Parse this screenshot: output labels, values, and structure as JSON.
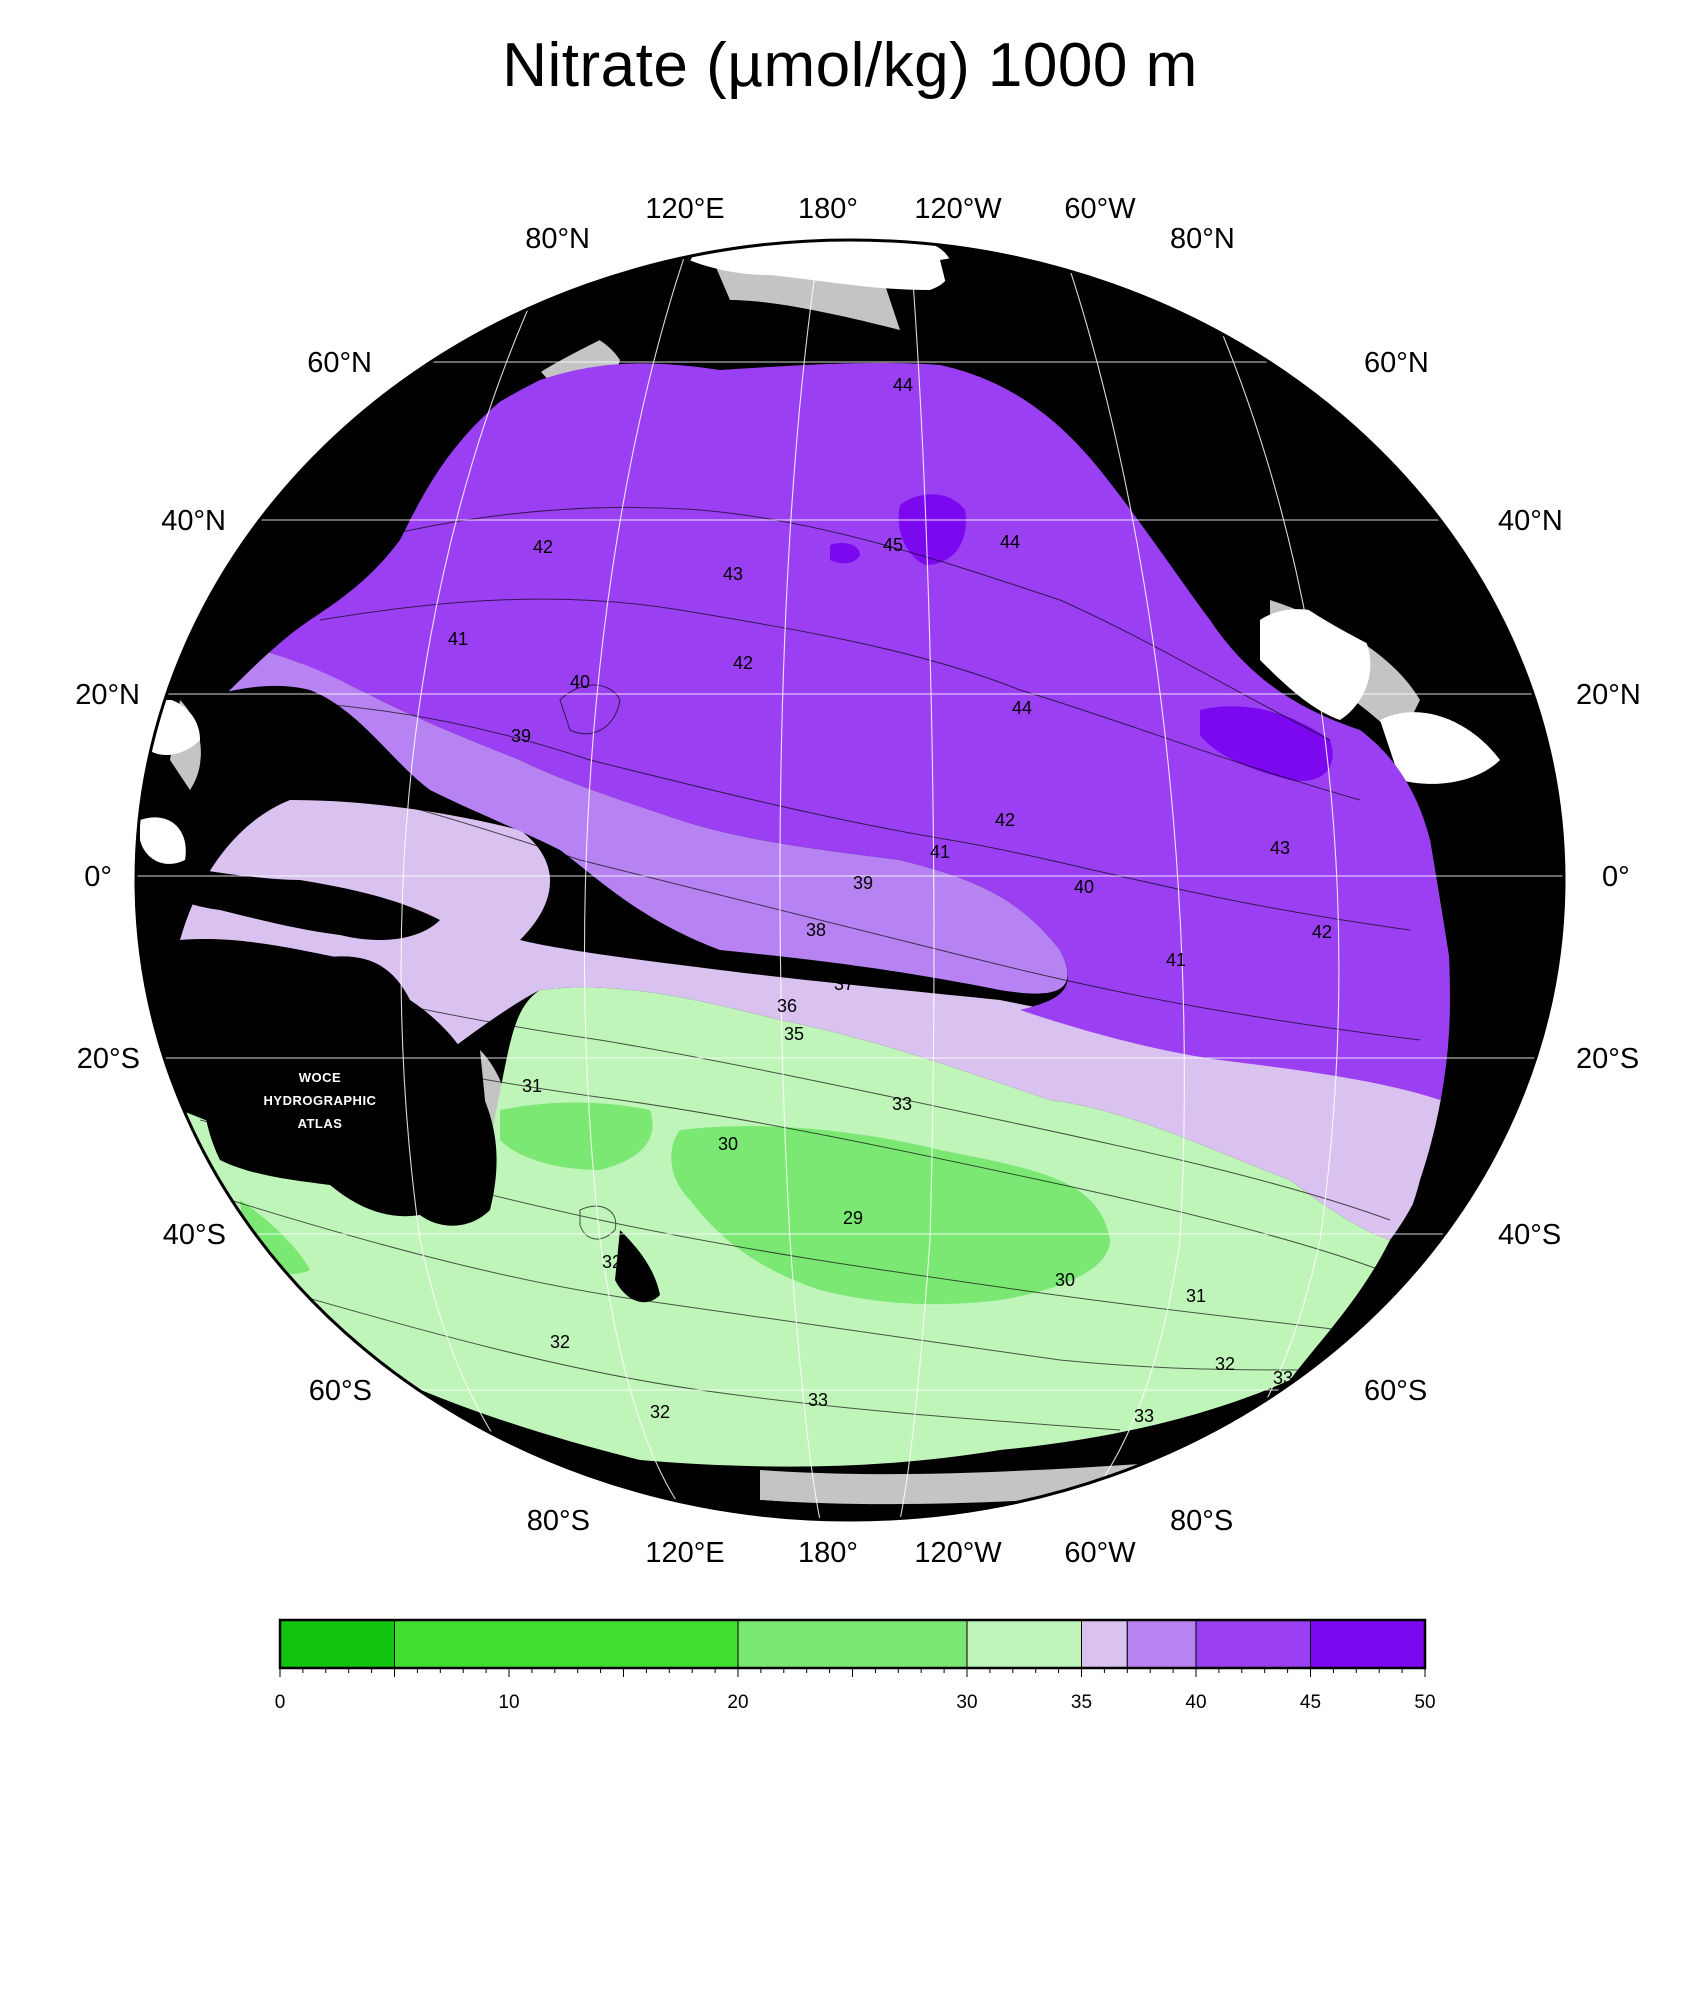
{
  "title": "Nitrate (µmol/kg) 1000 m",
  "stamp": {
    "line1": "WOCE",
    "line2": "HYDROGRAPHIC",
    "line3": "ATLAS"
  },
  "colors": {
    "ocean_0_5": "#11c40f",
    "ocean_5_20": "#40df2f",
    "ocean_20_30": "#7be874",
    "ocean_30_35": "#bff5b9",
    "ocean_35_37": "#dac2f0",
    "ocean_37_40": "#b783f2",
    "ocean_40_45": "#9a3ff2",
    "ocean_45_50": "#7c08ef",
    "land": "#000000",
    "shelf": "#c4c4c4",
    "ice": "#ffffff"
  },
  "lat_labels_left": [
    "80°N",
    "60°N",
    "40°N",
    "20°N",
    "0°",
    "20°S",
    "40°S",
    "60°S",
    "80°S"
  ],
  "lat_labels_right": [
    "80°N",
    "60°N",
    "40°N",
    "20°N",
    "0°",
    "20°S",
    "40°S",
    "60°S",
    "80°S"
  ],
  "lon_labels_top": [
    "120°E",
    "180°",
    "120°W",
    "60°W"
  ],
  "lon_labels_bottom": [
    "120°E",
    "180°",
    "120°W",
    "60°W"
  ],
  "contour_labels": [
    "44",
    "42",
    "43",
    "45",
    "44",
    "41",
    "42",
    "40",
    "44",
    "39",
    "37",
    "38",
    "39",
    "42",
    "43",
    "41",
    "39",
    "40",
    "38",
    "42",
    "41",
    "37",
    "36",
    "36",
    "35",
    "31",
    "33",
    "30",
    "29",
    "32",
    "30",
    "31",
    "32",
    "32",
    "33",
    "33",
    "32",
    "33"
  ],
  "colorbar": {
    "ticks": [
      "0",
      "10",
      "20",
      "30",
      "35",
      "40",
      "45",
      "50"
    ],
    "bins": [
      {
        "from": 0,
        "to": 5,
        "color": "#11c40f"
      },
      {
        "from": 5,
        "to": 20,
        "color": "#40df2f"
      },
      {
        "from": 20,
        "to": 30,
        "color": "#7be874"
      },
      {
        "from": 30,
        "to": 35,
        "color": "#bff5b9"
      },
      {
        "from": 35,
        "to": 37,
        "color": "#dac2f0"
      },
      {
        "from": 37,
        "to": 40,
        "color": "#b783f2"
      },
      {
        "from": 40,
        "to": 45,
        "color": "#9a3ff2"
      },
      {
        "from": 45,
        "to": 50,
        "color": "#7c08ef"
      }
    ],
    "min": 0,
    "max": 50
  }
}
